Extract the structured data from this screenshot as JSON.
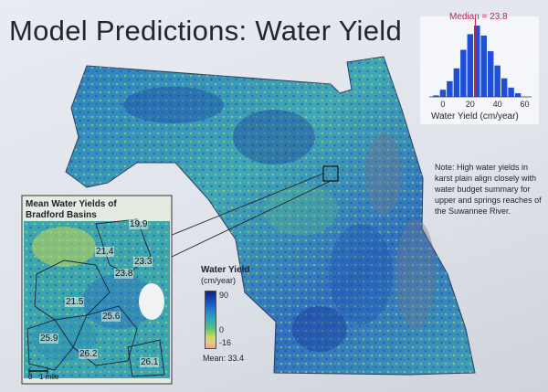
{
  "slide": {
    "title": "Model Predictions: Water Yield",
    "note": "Note: High water yields in karst plain align closely with water budget summary for upper and springs reaches of the Suwannee River."
  },
  "inset": {
    "title": "Mean Water Yields of Bradford Basins",
    "basins": [
      {
        "id": "b1",
        "value": "19.9"
      },
      {
        "id": "b2",
        "value": "21.4"
      },
      {
        "id": "b3",
        "value": "23.3"
      },
      {
        "id": "b4",
        "value": "23.8"
      },
      {
        "id": "b5",
        "value": "21.5"
      },
      {
        "id": "b6",
        "value": "25.6"
      },
      {
        "id": "b7",
        "value": "25.9"
      },
      {
        "id": "b8",
        "value": "26.2"
      },
      {
        "id": "b9",
        "value": "26.1"
      }
    ],
    "scale_zero": "0",
    "scale_label": "1 mile"
  },
  "legend": {
    "title": "Water Yield",
    "units": "(cm/year)",
    "max_label": "90",
    "zero_label": "0",
    "min_label": "-16",
    "mean_label": "Mean: 33.4"
  },
  "colors": {
    "high": "#0c1f8a",
    "mid": "#2aa0c8",
    "green": "#59c27a",
    "low": "#c9dd55",
    "negative": "#e4a592",
    "histogram_bar": "#1f4fd6",
    "median_line": "#b5285a"
  },
  "chart_data": {
    "type": "bar",
    "title": "Median = 23.8",
    "xlabel": "Water Yield (cm/year)",
    "ylabel": "",
    "median": 23.8,
    "x_ticks": [
      "0",
      "20",
      "40",
      "60"
    ],
    "xlim": [
      -10,
      65
    ],
    "bin_centers": [
      -5,
      0,
      5,
      10,
      15,
      20,
      25,
      30,
      35,
      40,
      45,
      50,
      55
    ],
    "values": [
      0.02,
      0.1,
      0.22,
      0.4,
      0.66,
      0.88,
      1.0,
      0.86,
      0.64,
      0.44,
      0.26,
      0.13,
      0.05
    ]
  }
}
